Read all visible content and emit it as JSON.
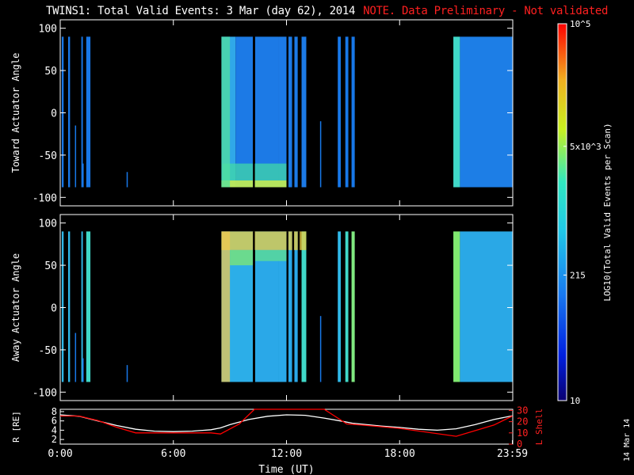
{
  "title": {
    "main": "TWINS1: Total Valid Events:  3 Mar (day  62), 2014",
    "note": "NOTE. Data Preliminary - Not validated"
  },
  "stamp": "14 Mar 14",
  "colorbar": {
    "label": "LOG10(Total Valid Events per Scan)",
    "ticks": [
      {
        "value": 10,
        "label": "10"
      },
      {
        "value": 215,
        "label": "215"
      },
      {
        "value": 5000,
        "label": "5x10^3"
      },
      {
        "value": 100000,
        "label": "10^5"
      }
    ]
  },
  "chart_data": [
    {
      "type": "heatmap",
      "ylabel": "Toward Actuator Angle",
      "ylim": [
        -110,
        110
      ],
      "yticks": [
        100,
        50,
        0,
        -50,
        -100
      ],
      "xlim": [
        0,
        24
      ],
      "bands": [
        {
          "t0": 0.08,
          "t1": 0.18,
          "lo": -88,
          "hi": 90,
          "color": "#1878e8"
        },
        {
          "t0": 0.42,
          "t1": 0.52,
          "lo": -88,
          "hi": 90,
          "color": "#1878e8"
        },
        {
          "t0": 0.78,
          "t1": 0.83,
          "lo": -88,
          "hi": -15,
          "color": "#1878e8"
        },
        {
          "t0": 1.12,
          "t1": 1.2,
          "lo": -88,
          "hi": 90,
          "color": "#1878e8"
        },
        {
          "t0": 1.18,
          "t1": 1.22,
          "lo": -88,
          "hi": -60,
          "color": "#1878e8"
        },
        {
          "t0": 1.38,
          "t1": 1.6,
          "lo": -88,
          "hi": 90,
          "color": "#1878e8"
        },
        {
          "t0": 3.52,
          "t1": 3.58,
          "lo": -88,
          "hi": -70,
          "color": "#1878e8"
        },
        {
          "t0": 8.55,
          "t1": 9.3,
          "lo": -88,
          "hi": 90,
          "color": "#30a8e8"
        },
        {
          "t0": 9.3,
          "t1": 10.22,
          "lo": -88,
          "hi": 90,
          "color": "#1c7ae6"
        },
        {
          "t0": 10.34,
          "t1": 11.6,
          "lo": -88,
          "hi": 90,
          "color": "#1c7ae6"
        },
        {
          "t0": 11.6,
          "t1": 12.0,
          "lo": -88,
          "hi": 90,
          "color": "#1c7ae6"
        },
        {
          "t0": 12.1,
          "t1": 12.3,
          "lo": -88,
          "hi": 90,
          "color": "#1c7ae6"
        },
        {
          "t0": 12.42,
          "t1": 12.6,
          "lo": -88,
          "hi": 90,
          "color": "#1c7ae6"
        },
        {
          "t0": 12.8,
          "t1": 13.05,
          "lo": -88,
          "hi": 90,
          "color": "#1c7ae6"
        },
        {
          "t0": 13.78,
          "t1": 13.84,
          "lo": -88,
          "hi": -10,
          "color": "#1878e8"
        },
        {
          "t0": 14.72,
          "t1": 14.88,
          "lo": -88,
          "hi": 90,
          "color": "#1878e8"
        },
        {
          "t0": 15.12,
          "t1": 15.28,
          "lo": -88,
          "hi": 90,
          "color": "#1878e8"
        },
        {
          "t0": 15.45,
          "t1": 15.62,
          "lo": -88,
          "hi": 90,
          "color": "#1878e8"
        },
        {
          "t0": 20.85,
          "t1": 21.2,
          "lo": -88,
          "hi": 90,
          "color": "#40d8c8"
        },
        {
          "t0": 21.2,
          "t1": 23.98,
          "lo": -88,
          "hi": 90,
          "color": "#1d7ee6"
        }
      ],
      "highlights": [
        {
          "t0": 8.6,
          "t1": 12.0,
          "lo": -88,
          "hi": -60,
          "color": "#40d8a8"
        },
        {
          "t0": 8.55,
          "t1": 12.0,
          "lo": -88,
          "hi": -80,
          "color": "#e0f040"
        },
        {
          "t0": 8.55,
          "t1": 9.0,
          "lo": -88,
          "hi": 90,
          "color": "#50e0a0"
        }
      ]
    },
    {
      "type": "heatmap",
      "ylabel": "Away Actuator Angle",
      "ylim": [
        -110,
        110
      ],
      "yticks": [
        100,
        50,
        0,
        -50,
        -100
      ],
      "xlim": [
        0,
        24
      ],
      "bands": [
        {
          "t0": 0.08,
          "t1": 0.18,
          "lo": -88,
          "hi": 90,
          "color": "#30b8e8"
        },
        {
          "t0": 0.42,
          "t1": 0.52,
          "lo": -88,
          "hi": 90,
          "color": "#30b8e8"
        },
        {
          "t0": 0.78,
          "t1": 0.83,
          "lo": -88,
          "hi": -30,
          "color": "#1878e8"
        },
        {
          "t0": 1.12,
          "t1": 1.2,
          "lo": -88,
          "hi": 90,
          "color": "#30b8e8"
        },
        {
          "t0": 1.18,
          "t1": 1.22,
          "lo": -88,
          "hi": -60,
          "color": "#1878e8"
        },
        {
          "t0": 1.38,
          "t1": 1.6,
          "lo": -88,
          "hi": 90,
          "color": "#40d8c8"
        },
        {
          "t0": 3.52,
          "t1": 3.58,
          "lo": -88,
          "hi": -68,
          "color": "#1878e8"
        },
        {
          "t0": 8.55,
          "t1": 10.22,
          "lo": -88,
          "hi": 90,
          "color": "#2caee8"
        },
        {
          "t0": 10.34,
          "t1": 11.6,
          "lo": -88,
          "hi": 90,
          "color": "#2aa8e8"
        },
        {
          "t0": 11.6,
          "t1": 12.0,
          "lo": -88,
          "hi": 90,
          "color": "#2aa8e8"
        },
        {
          "t0": 12.1,
          "t1": 12.3,
          "lo": -88,
          "hi": 90,
          "color": "#2aa8e8"
        },
        {
          "t0": 12.42,
          "t1": 12.6,
          "lo": -88,
          "hi": 90,
          "color": "#2aa8e8"
        },
        {
          "t0": 12.8,
          "t1": 13.05,
          "lo": -88,
          "hi": 90,
          "color": "#40d8c8"
        },
        {
          "t0": 13.78,
          "t1": 13.84,
          "lo": -88,
          "hi": -10,
          "color": "#1878e8"
        },
        {
          "t0": 14.72,
          "t1": 14.88,
          "lo": -88,
          "hi": 90,
          "color": "#30b8e8"
        },
        {
          "t0": 15.12,
          "t1": 15.28,
          "lo": -88,
          "hi": 90,
          "color": "#40d8c8"
        },
        {
          "t0": 15.45,
          "t1": 15.62,
          "lo": -88,
          "hi": 90,
          "color": "#80e880"
        },
        {
          "t0": 20.85,
          "t1": 21.2,
          "lo": -88,
          "hi": 90,
          "color": "#80e870"
        },
        {
          "t0": 21.2,
          "t1": 23.98,
          "lo": -88,
          "hi": 90,
          "color": "#2aa8e6"
        }
      ],
      "highlights": [
        {
          "t0": 8.55,
          "t1": 13.05,
          "lo": 68,
          "hi": 90,
          "color": "#f0d040"
        },
        {
          "t0": 8.55,
          "t1": 9.0,
          "lo": -88,
          "hi": 90,
          "color": "#f0c850"
        },
        {
          "t0": 9.0,
          "t1": 10.22,
          "lo": 50,
          "hi": 68,
          "color": "#80e870"
        },
        {
          "t0": 10.34,
          "t1": 12.0,
          "lo": 55,
          "hi": 68,
          "color": "#60e090"
        }
      ]
    },
    {
      "type": "line",
      "xlabel": "Time (UT)",
      "xticks": [
        {
          "value": 0,
          "label": "0:00"
        },
        {
          "value": 6,
          "label": "6:00"
        },
        {
          "value": 12,
          "label": "12:00"
        },
        {
          "value": 18,
          "label": "18:00"
        },
        {
          "value": 23.98,
          "label": "23:59"
        }
      ],
      "ylabel_left": "R [RE]",
      "ylabel_right": "L Shell",
      "yticks_left": [
        2,
        4,
        6,
        8
      ],
      "yticks_right": [
        0,
        10,
        20,
        30
      ],
      "ylim_left": [
        1,
        8.5
      ],
      "ylim_right": [
        0,
        31
      ],
      "series": [
        {
          "name": "R [RE]",
          "color": "#ffffff",
          "axis": "left",
          "x": [
            0,
            1,
            2,
            3,
            4,
            5,
            6,
            7,
            8,
            8.5,
            9,
            10,
            11,
            12,
            13,
            14,
            15,
            15.5,
            16,
            17,
            18,
            19,
            20,
            21,
            22,
            23,
            23.98
          ],
          "y": [
            7.3,
            7.0,
            6.0,
            5.0,
            4.2,
            3.8,
            3.7,
            3.8,
            4.1,
            4.5,
            5.2,
            6.3,
            7.0,
            7.3,
            7.2,
            6.6,
            5.9,
            5.5,
            5.3,
            4.9,
            4.6,
            4.2,
            4.0,
            4.3,
            5.2,
            6.3,
            7.1
          ]
        },
        {
          "name": "L Shell",
          "color": "#ff0000",
          "axis": "right",
          "x": [
            0,
            1,
            2,
            3,
            4,
            6,
            8,
            8.5,
            9.5,
            10.3,
            10.8,
            13.2,
            14,
            15.2,
            16,
            18,
            21,
            23,
            23.98
          ],
          "y": [
            25,
            25,
            21,
            15,
            10,
            10,
            10,
            9,
            18,
            31,
            31,
            31,
            31,
            18,
            17,
            14,
            7,
            17,
            25
          ]
        }
      ]
    }
  ]
}
